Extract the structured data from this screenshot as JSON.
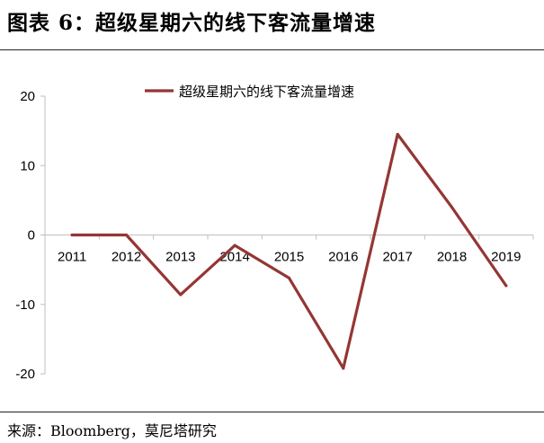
{
  "figure": {
    "title": "图表 6：超级星期六的线下客流量增速",
    "source": "来源：Bloomberg，莫尼塔研究"
  },
  "chart_data": {
    "type": "line",
    "x": [
      "2011",
      "2012",
      "2013",
      "2014",
      "2015",
      "2016",
      "2017",
      "2018",
      "2019"
    ],
    "series": [
      {
        "name": "超级星期六的线下客流量增速",
        "color": "#943634",
        "values": [
          0,
          0,
          -8.6,
          -1.5,
          -6.2,
          -19.2,
          14.5,
          4.0,
          -7.3
        ]
      }
    ],
    "yticks": [
      "20",
      "10",
      "0",
      "-10",
      "-20"
    ],
    "ylim": [
      -20,
      20
    ],
    "grid": false,
    "legend": "top-center"
  }
}
